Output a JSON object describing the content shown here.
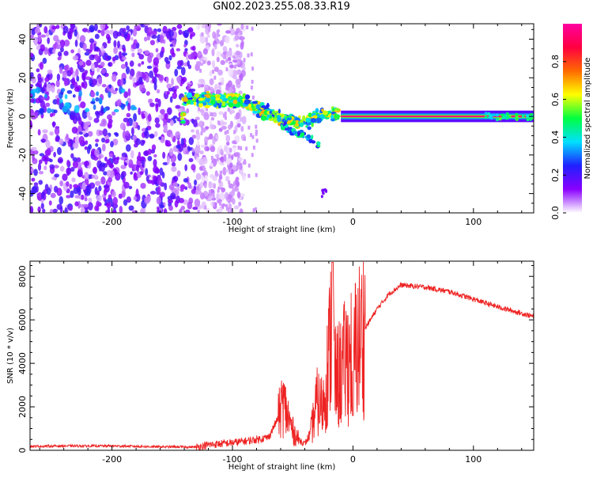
{
  "title": "GN02.2023.255.08.33.R19",
  "colorbar": {
    "label": "Normalized spectral amplitude",
    "ticks": [
      "0.0",
      "0.2",
      "0.4",
      "0.6",
      "0.8"
    ],
    "tick_values": [
      0.0,
      0.2,
      0.4,
      0.6,
      0.8
    ],
    "range": [
      0,
      1
    ],
    "colormap": [
      "#ffffff",
      "#8a00ff",
      "#2020ff",
      "#00e0ff",
      "#00ff40",
      "#ffff00",
      "#ff6a00",
      "#ff0040",
      "#ff00a0"
    ]
  },
  "chart_data": [
    {
      "type": "heatmap",
      "xlabel": "Height of straight line (km)",
      "ylabel": "Frequency (Hz)",
      "xlim": [
        -268,
        150
      ],
      "ylim": [
        -50,
        48
      ],
      "xticks": [
        -200,
        -100,
        0,
        100
      ],
      "xtick_labels": [
        "-200",
        "-100",
        "0",
        "100"
      ],
      "yticks": [
        -40,
        -20,
        0,
        20,
        40
      ],
      "ytick_labels": [
        "-40",
        "-20",
        "0",
        "20",
        "40"
      ],
      "grid": false,
      "features": [
        {
          "description": "broadband noise",
          "x_range": [
            -268,
            -130
          ],
          "freq_range": [
            -50,
            48
          ],
          "amplitude": 0.12
        },
        {
          "description": "main energy band",
          "points": [
            [
              -140,
              8
            ],
            [
              -120,
              9
            ],
            [
              -100,
              8
            ],
            [
              -85,
              7
            ],
            [
              -75,
              3
            ],
            [
              -65,
              0
            ],
            [
              -55,
              -2
            ],
            [
              -45,
              -3
            ],
            [
              -35,
              -2
            ],
            [
              -25,
              1
            ],
            [
              -15,
              1
            ],
            [
              0,
              0
            ],
            [
              150,
              0
            ]
          ],
          "amplitude": 0.5
        },
        {
          "description": "steady line",
          "x_range": [
            -10,
            150
          ],
          "freq": 0,
          "amplitude": 0.95
        },
        {
          "description": "descending branch",
          "points": [
            [
              -60,
              -4
            ],
            [
              -50,
              -8
            ],
            [
              -40,
              -10
            ],
            [
              -30,
              -14
            ]
          ],
          "amplitude": 0.35
        }
      ]
    },
    {
      "type": "line",
      "xlabel": "Height of straight line (km)",
      "ylabel": "SNR (10 * v/v)",
      "xlim": [
        -268,
        150
      ],
      "ylim": [
        0,
        8700
      ],
      "xticks": [
        -200,
        -100,
        0,
        100
      ],
      "xtick_labels": [
        "-200",
        "-100",
        "0",
        "100"
      ],
      "yticks": [
        0,
        2000,
        4000,
        6000,
        8000
      ],
      "ytick_labels": [
        "0",
        "2000",
        "4000",
        "6000",
        "8000"
      ],
      "grid": false,
      "series": [
        {
          "color": "#ee2222",
          "x": [
            -268,
            -240,
            -200,
            -160,
            -130,
            -120,
            -100,
            -85,
            -70,
            -62,
            -58,
            -55,
            -50,
            -45,
            -40,
            -35,
            -30,
            -25,
            -20,
            -17,
            -15,
            -10,
            -5,
            0,
            10,
            20,
            30,
            40,
            60,
            80,
            100,
            120,
            150
          ],
          "y": [
            180,
            200,
            200,
            160,
            150,
            250,
            350,
            450,
            600,
            1500,
            2200,
            1700,
            900,
            500,
            300,
            800,
            2200,
            2000,
            4200,
            6500,
            3200,
            3600,
            4200,
            4500,
            5600,
            6500,
            7200,
            7600,
            7500,
            7300,
            6950,
            6600,
            6150
          ]
        }
      ]
    }
  ]
}
